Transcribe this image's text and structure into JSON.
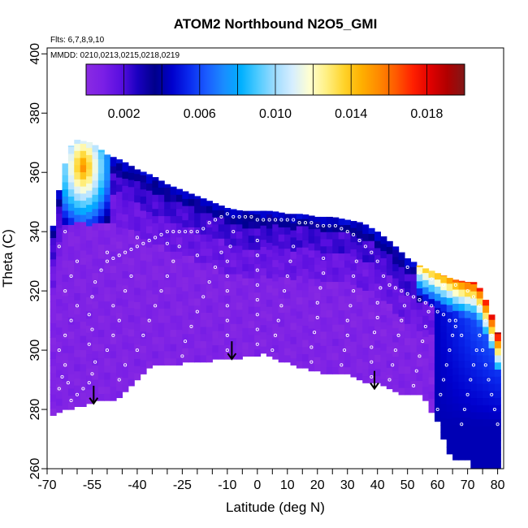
{
  "chart_data": {
    "type": "heatmap",
    "title": "ATOM2 Northbound N2O5_GMI",
    "subtitle_flights": "Flts: 6,7,8,9,10",
    "subtitle_dates": "MMDD: 0210,0213,0215,0218,0219",
    "xlabel": "Latitude (deg N)",
    "ylabel": "Theta (C)",
    "xlim": [
      -70,
      82
    ],
    "ylim": [
      260,
      402
    ],
    "x_ticks": [
      -70,
      -55,
      -40,
      -25,
      -10,
      0,
      10,
      20,
      30,
      40,
      50,
      60,
      70,
      80
    ],
    "x_tick_labels": [
      "-70",
      "-55",
      "-40",
      "-25",
      "-10",
      "0",
      "10",
      "20",
      "30",
      "40",
      "50",
      "60",
      "70",
      "80"
    ],
    "x_minor_ticks": [
      -65,
      -60,
      -50,
      -45,
      -35,
      -30,
      -20,
      -15,
      -5,
      5,
      15,
      25,
      35,
      45,
      55,
      65,
      75
    ],
    "y_ticks": [
      260,
      280,
      300,
      320,
      340,
      360,
      380,
      400
    ],
    "y_tick_labels": [
      "260",
      "280",
      "300",
      "320",
      "340",
      "360",
      "380",
      "400"
    ],
    "colorbar": {
      "min": 0.0,
      "max": 0.02,
      "tick_values": [
        0.002,
        0.006,
        0.01,
        0.014,
        0.018
      ],
      "tick_labels": [
        "0.002",
        "0.006",
        "0.010",
        "0.014",
        "0.018"
      ],
      "colors": [
        "#8a2be2",
        "#7a1fe6",
        "#5a0fe0",
        "#1a00c0",
        "#00008b",
        "#0000cd",
        "#0a2aee",
        "#1a5cff",
        "#1a8cff",
        "#00b0ff",
        "#4fcbff",
        "#a0dcff",
        "#d6eeff",
        "#ffffd0",
        "#ffef80",
        "#ffd32a",
        "#ffb000",
        "#ff8a00",
        "#ff5a00",
        "#ff2000",
        "#e00000",
        "#b00000",
        "#801818"
      ]
    },
    "upper_boundary": [
      [
        -68,
        342
      ],
      [
        -66,
        354
      ],
      [
        -64,
        363
      ],
      [
        -62,
        369
      ],
      [
        -60,
        371
      ],
      [
        -55,
        370
      ],
      [
        -50,
        366
      ],
      [
        -45,
        364
      ],
      [
        -40,
        361
      ],
      [
        -35,
        359
      ],
      [
        -30,
        356
      ],
      [
        -25,
        354
      ],
      [
        -20,
        352
      ],
      [
        -15,
        350
      ],
      [
        -10,
        348
      ],
      [
        -5,
        347
      ],
      [
        0,
        347
      ],
      [
        5,
        347
      ],
      [
        10,
        346
      ],
      [
        15,
        346
      ],
      [
        20,
        345
      ],
      [
        25,
        345
      ],
      [
        30,
        344
      ],
      [
        35,
        343
      ],
      [
        40,
        340
      ],
      [
        45,
        336
      ],
      [
        50,
        331
      ],
      [
        55,
        328
      ],
      [
        60,
        326
      ],
      [
        65,
        324
      ],
      [
        70,
        323
      ],
      [
        72,
        323
      ],
      [
        74,
        321
      ],
      [
        76,
        317
      ],
      [
        78,
        312
      ],
      [
        80,
        306
      ],
      [
        80,
        272
      ]
    ],
    "lower_boundary": [
      [
        -68,
        278
      ],
      [
        -65,
        280
      ],
      [
        -60,
        281
      ],
      [
        -55,
        283
      ],
      [
        -50,
        283
      ],
      [
        -45,
        285
      ],
      [
        -40,
        290
      ],
      [
        -35,
        295
      ],
      [
        -25,
        296
      ],
      [
        -15,
        297
      ],
      [
        -5,
        298
      ],
      [
        2,
        299
      ],
      [
        10,
        296
      ],
      [
        20,
        293
      ],
      [
        30,
        292
      ],
      [
        35,
        290
      ],
      [
        40,
        289
      ],
      [
        45,
        287
      ],
      [
        50,
        285
      ],
      [
        55,
        285
      ],
      [
        60,
        276
      ],
      [
        65,
        263
      ],
      [
        70,
        263
      ],
      [
        72,
        260
      ],
      [
        80,
        260
      ],
      [
        80,
        272
      ]
    ],
    "obs_points": [
      [
        -66,
        287
      ],
      [
        -65,
        291
      ],
      [
        -64,
        295
      ],
      [
        -63,
        289
      ],
      [
        -62,
        283
      ],
      [
        -60,
        285
      ],
      [
        -58,
        287
      ],
      [
        -56,
        289
      ],
      [
        -55,
        292
      ],
      [
        -54,
        296
      ],
      [
        -56,
        302
      ],
      [
        -55,
        307
      ],
      [
        -56,
        312
      ],
      [
        -55,
        318
      ],
      [
        -54,
        323
      ],
      [
        -52,
        327
      ],
      [
        -50,
        330
      ],
      [
        -48,
        331
      ],
      [
        -46,
        332
      ],
      [
        -44,
        333
      ],
      [
        -42,
        334
      ],
      [
        -40,
        335
      ],
      [
        -38,
        336
      ],
      [
        -36,
        337
      ],
      [
        -34,
        338
      ],
      [
        -32,
        339
      ],
      [
        -30,
        340
      ],
      [
        -28,
        340
      ],
      [
        -26,
        340
      ],
      [
        -24,
        340
      ],
      [
        -22,
        340
      ],
      [
        -20,
        340
      ],
      [
        -18,
        341
      ],
      [
        -16,
        343
      ],
      [
        -14,
        344
      ],
      [
        -12,
        345
      ],
      [
        -10,
        346
      ],
      [
        -8,
        345
      ],
      [
        -6,
        345
      ],
      [
        -4,
        345
      ],
      [
        -2,
        345
      ],
      [
        0,
        344
      ],
      [
        2,
        344
      ],
      [
        4,
        344
      ],
      [
        6,
        344
      ],
      [
        8,
        344
      ],
      [
        10,
        344
      ],
      [
        12,
        344
      ],
      [
        14,
        343
      ],
      [
        16,
        343
      ],
      [
        18,
        343
      ],
      [
        20,
        342
      ],
      [
        22,
        342
      ],
      [
        24,
        342
      ],
      [
        26,
        342
      ],
      [
        28,
        341
      ],
      [
        30,
        340
      ],
      [
        32,
        339
      ],
      [
        34,
        337
      ],
      [
        36,
        335
      ],
      [
        38,
        333
      ],
      [
        40,
        330
      ],
      [
        42,
        325
      ],
      [
        44,
        322
      ],
      [
        46,
        321
      ],
      [
        48,
        320
      ],
      [
        50,
        319
      ],
      [
        52,
        318
      ],
      [
        54,
        317
      ],
      [
        56,
        316
      ],
      [
        58,
        315
      ],
      [
        60,
        313
      ],
      [
        62,
        312
      ],
      [
        64,
        310
      ],
      [
        66,
        308
      ],
      [
        68,
        305
      ],
      [
        -66,
        300
      ],
      [
        -64,
        305
      ],
      [
        -62,
        310
      ],
      [
        -60,
        315
      ],
      [
        -64,
        320
      ],
      [
        -62,
        325
      ],
      [
        -60,
        330
      ],
      [
        -66,
        335
      ],
      [
        -64,
        340
      ],
      [
        -50,
        300
      ],
      [
        -48,
        305
      ],
      [
        -46,
        310
      ],
      [
        -48,
        315
      ],
      [
        -44,
        320
      ],
      [
        -42,
        325
      ],
      [
        -46,
        290
      ],
      [
        -44,
        295
      ],
      [
        -40,
        300
      ],
      [
        -38,
        305
      ],
      [
        -36,
        310
      ],
      [
        -34,
        315
      ],
      [
        -32,
        320
      ],
      [
        -30,
        325
      ],
      [
        -28,
        330
      ],
      [
        -26,
        335
      ],
      [
        -25,
        298
      ],
      [
        -24,
        303
      ],
      [
        -22,
        308
      ],
      [
        -20,
        313
      ],
      [
        -18,
        318
      ],
      [
        -16,
        323
      ],
      [
        -14,
        328
      ],
      [
        -12,
        333
      ],
      [
        -10,
        300
      ],
      [
        -10,
        305
      ],
      [
        -10,
        310
      ],
      [
        -10,
        315
      ],
      [
        -10,
        320
      ],
      [
        -10,
        325
      ],
      [
        -10,
        330
      ],
      [
        -9,
        335
      ],
      [
        -8,
        340
      ],
      [
        0,
        302
      ],
      [
        0,
        307
      ],
      [
        0,
        312
      ],
      [
        0,
        317
      ],
      [
        0,
        322
      ],
      [
        0,
        327
      ],
      [
        0,
        332
      ],
      [
        0,
        337
      ],
      [
        5,
        300
      ],
      [
        6,
        305
      ],
      [
        7,
        310
      ],
      [
        8,
        315
      ],
      [
        9,
        320
      ],
      [
        10,
        325
      ],
      [
        11,
        330
      ],
      [
        12,
        335
      ],
      [
        18,
        296
      ],
      [
        18,
        301
      ],
      [
        19,
        306
      ],
      [
        20,
        311
      ],
      [
        20,
        316
      ],
      [
        21,
        321
      ],
      [
        22,
        326
      ],
      [
        22,
        331
      ],
      [
        28,
        295
      ],
      [
        29,
        300
      ],
      [
        30,
        305
      ],
      [
        30,
        310
      ],
      [
        31,
        315
      ],
      [
        32,
        320
      ],
      [
        32,
        325
      ],
      [
        33,
        330
      ],
      [
        38,
        291
      ],
      [
        38,
        296
      ],
      [
        38,
        301
      ],
      [
        39,
        306
      ],
      [
        40,
        311
      ],
      [
        40,
        316
      ],
      [
        41,
        321
      ],
      [
        44,
        290
      ],
      [
        45,
        295
      ],
      [
        46,
        300
      ],
      [
        47,
        305
      ],
      [
        48,
        310
      ],
      [
        49,
        315
      ],
      [
        52,
        288
      ],
      [
        53,
        293
      ],
      [
        54,
        298
      ],
      [
        55,
        303
      ],
      [
        56,
        308
      ],
      [
        57,
        313
      ],
      [
        60,
        280
      ],
      [
        61,
        285
      ],
      [
        62,
        290
      ],
      [
        63,
        295
      ],
      [
        64,
        300
      ],
      [
        65,
        305
      ],
      [
        66,
        310
      ],
      [
        68,
        275
      ],
      [
        69,
        280
      ],
      [
        70,
        285
      ],
      [
        71,
        290
      ],
      [
        72,
        295
      ],
      [
        73,
        300
      ],
      [
        74,
        305
      ],
      [
        75,
        300
      ],
      [
        76,
        295
      ],
      [
        77,
        290
      ],
      [
        78,
        285
      ],
      [
        79,
        280
      ],
      [
        80,
        275
      ],
      [
        78,
        305
      ],
      [
        76,
        310
      ],
      [
        74,
        315
      ],
      [
        72,
        318
      ],
      [
        70,
        320
      ],
      [
        66,
        322
      ],
      [
        62,
        322
      ],
      [
        58,
        324
      ],
      [
        54,
        326
      ],
      [
        50,
        328
      ],
      [
        -20,
        332
      ],
      [
        -30,
        336
      ],
      [
        -40,
        338
      ],
      [
        -50,
        333
      ]
    ],
    "arrows": [
      [
        -54.5,
        288
      ],
      [
        -8.5,
        303
      ],
      [
        39,
        293
      ]
    ]
  }
}
